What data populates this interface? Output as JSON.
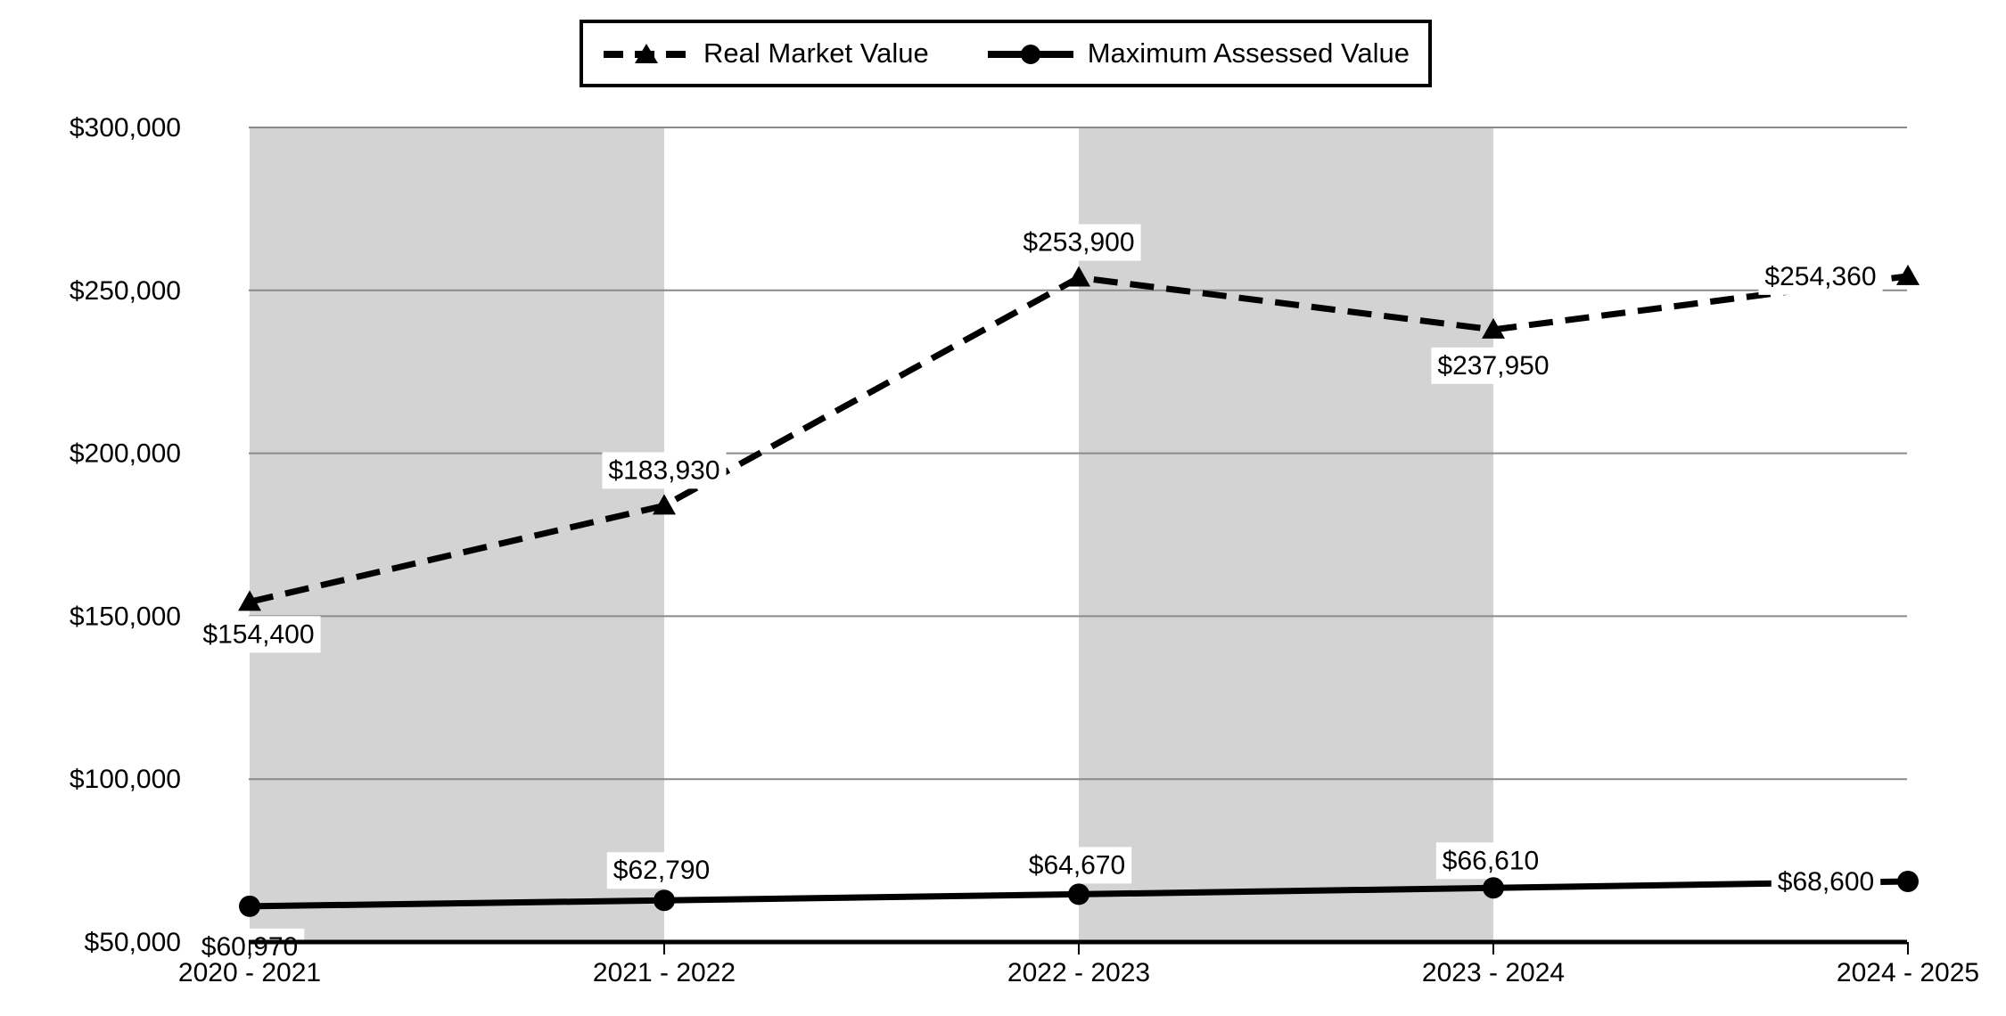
{
  "legend": {
    "items": [
      {
        "label": "Real Market Value",
        "marker": "dashed-line-triangle"
      },
      {
        "label": "Maximum Assessed Value",
        "marker": "solid-line-circle"
      }
    ]
  },
  "chart_data": {
    "type": "line",
    "categories": [
      "2020 - 2021",
      "2021 - 2022",
      "2022 - 2023",
      "2023 - 2024",
      "2024 - 2025"
    ],
    "series": [
      {
        "name": "Real Market Value",
        "line_style": "dashed",
        "marker": "triangle",
        "values": [
          154400,
          183930,
          253900,
          237950,
          254360
        ],
        "labels": [
          "$154,400",
          "$183,930",
          "$253,900",
          "$237,950",
          "$254,360"
        ],
        "label_offsets": [
          [
            10,
            36
          ],
          [
            0,
            -40
          ],
          [
            0,
            -40
          ],
          [
            0,
            40
          ],
          [
            -98,
            0
          ]
        ]
      },
      {
        "name": "Maximum Assessed Value",
        "line_style": "solid",
        "marker": "circle",
        "values": [
          60970,
          62790,
          64670,
          66610,
          68600
        ],
        "labels": [
          "$60,970",
          "$62,790",
          "$64,670",
          "$66,610",
          "$68,600"
        ],
        "label_offsets": [
          [
            0,
            45
          ],
          [
            -3,
            -34
          ],
          [
            -2,
            -33
          ],
          [
            -3,
            -31
          ],
          [
            -92,
            0
          ]
        ]
      }
    ],
    "y_ticks": [
      50000,
      100000,
      150000,
      200000,
      250000,
      300000
    ],
    "y_tick_labels": [
      "$50,000",
      "$100,000",
      "$150,000",
      "$200,000",
      "$250,000",
      "$300,000"
    ],
    "ylim": [
      50000,
      300000
    ],
    "grid": true,
    "legend_position": "top-center",
    "shaded_band_ranges": [
      [
        0,
        1
      ],
      [
        2,
        3
      ]
    ],
    "colors": {
      "series": "#000000",
      "gridline": "#8a8a8a",
      "band": "#d3d3d3",
      "axis": "#000000",
      "label_bg": "#ffffff"
    }
  }
}
